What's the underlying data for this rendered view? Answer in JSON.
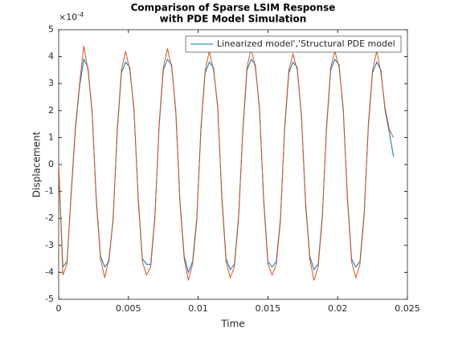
{
  "chart_data": {
    "type": "line",
    "title": [
      "Comparison of Sparse LSIM Response",
      "with PDE Model Simulation"
    ],
    "xlabel": "Time",
    "ylabel": "Displacement",
    "y_multiplier": {
      "base": "×10",
      "exponent": "-4"
    },
    "x": [
      0,
      0.0003,
      0.0006,
      0.0009,
      0.0012,
      0.0015,
      0.0018,
      0.0021,
      0.0024,
      0.0027,
      0.003,
      0.0033,
      0.0036,
      0.0039,
      0.0042,
      0.0045,
      0.0048,
      0.0051,
      0.0054,
      0.0057,
      0.006,
      0.0063,
      0.0066,
      0.0069,
      0.0072,
      0.0075,
      0.0078,
      0.0081,
      0.0084,
      0.0087,
      0.009,
      0.0093,
      0.0096,
      0.0099,
      0.0102,
      0.0105,
      0.0108,
      0.0111,
      0.0114,
      0.0117,
      0.012,
      0.0123,
      0.0126,
      0.0129,
      0.0132,
      0.0135,
      0.0138,
      0.0141,
      0.0144,
      0.0147,
      0.015,
      0.0153,
      0.0156,
      0.0159,
      0.0162,
      0.0165,
      0.0168,
      0.0171,
      0.0174,
      0.0177,
      0.018,
      0.0183,
      0.0186,
      0.0189,
      0.0192,
      0.0195,
      0.0198,
      0.0201,
      0.0204,
      0.0207,
      0.021,
      0.0213,
      0.0216,
      0.0219,
      0.0222,
      0.0225,
      0.0228,
      0.0231,
      0.0234,
      0.0237,
      0.024
    ],
    "series": [
      {
        "name": "Linearized model','Structural PDE model",
        "color": "#0072BD",
        "values": [
          0,
          -3.8,
          -3.6,
          -1.1,
          1.3,
          2.9,
          3.9,
          3.6,
          1.9,
          -1.3,
          -3.4,
          -3.8,
          -3.6,
          -2.0,
          1.2,
          3.4,
          3.8,
          3.6,
          2.0,
          -1.2,
          -3.5,
          -3.7,
          -3.7,
          -1.9,
          1.4,
          3.5,
          3.9,
          3.7,
          1.9,
          -1.4,
          -3.4,
          -4.0,
          -3.6,
          -2.0,
          1.3,
          3.4,
          3.8,
          3.6,
          2.1,
          -1.2,
          -3.5,
          -3.9,
          -3.7,
          -1.9,
          1.2,
          3.5,
          3.9,
          3.7,
          2.0,
          -1.3,
          -3.6,
          -3.8,
          -3.6,
          -2.0,
          1.3,
          3.4,
          3.8,
          3.6,
          1.8,
          -1.4,
          -3.4,
          -3.9,
          -3.7,
          -1.9,
          1.3,
          3.5,
          3.9,
          3.7,
          2.0,
          -1.2,
          -3.5,
          -3.8,
          -3.6,
          -1.8,
          1.4,
          3.4,
          3.8,
          3.5,
          2.0,
          1.2,
          0.3
        ]
      },
      {
        "color": "#D95319",
        "values": [
          0,
          -4.1,
          -3.7,
          -1.0,
          1.4,
          3.0,
          4.4,
          3.5,
          2.0,
          -1.4,
          -3.5,
          -4.2,
          -3.5,
          -2.1,
          1.3,
          3.5,
          4.2,
          3.5,
          2.1,
          -1.3,
          -3.6,
          -4.1,
          -3.8,
          -2.0,
          1.5,
          3.6,
          4.3,
          3.6,
          2.0,
          -1.5,
          -3.5,
          -4.3,
          -3.7,
          -2.1,
          1.4,
          3.5,
          4.2,
          3.5,
          2.2,
          -1.3,
          -3.6,
          -4.2,
          -3.8,
          -2.0,
          1.3,
          3.6,
          4.3,
          3.6,
          2.1,
          -1.4,
          -3.7,
          -4.1,
          -3.7,
          -2.1,
          1.4,
          3.5,
          4.1,
          3.5,
          1.9,
          -1.5,
          -3.5,
          -4.3,
          -3.8,
          -2.0,
          1.4,
          3.6,
          4.2,
          3.6,
          2.1,
          -1.3,
          -3.6,
          -4.2,
          -3.7,
          -1.9,
          1.5,
          3.5,
          4.2,
          3.4,
          2.1,
          1.3,
          1.0
        ]
      }
    ],
    "xlim": [
      0,
      0.025
    ],
    "xticks": [
      0,
      0.005,
      0.01,
      0.015,
      0.02,
      0.025
    ],
    "ylim": [
      -5,
      5
    ],
    "yticks": [
      -5,
      -4,
      -3,
      -2,
      -1,
      0,
      1,
      2,
      3,
      4,
      5
    ],
    "legend": "northeast",
    "grid": false
  }
}
